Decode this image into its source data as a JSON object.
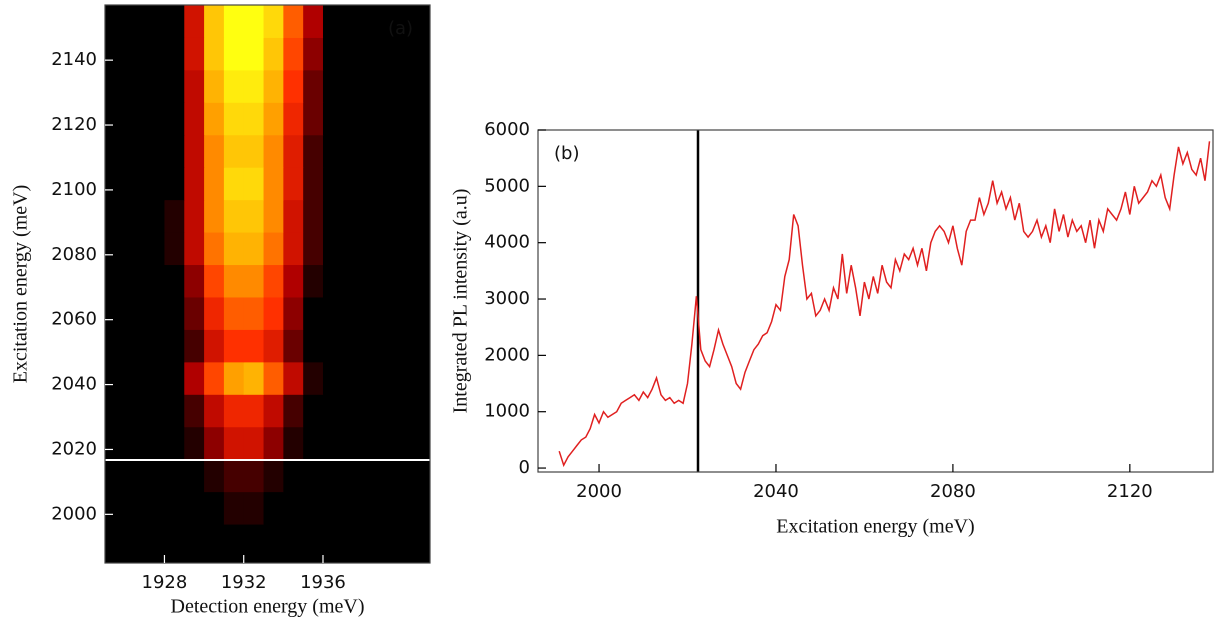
{
  "chart_data": [
    {
      "type": "heatmap",
      "label": "(a)",
      "xlabel": "Detection energy (meV)",
      "ylabel": "Excitation energy (meV)",
      "xlim": [
        1925,
        1941.4
      ],
      "ylim": [
        1985,
        2157
      ],
      "xticks": [
        1928,
        1932,
        1936
      ],
      "yticks": [
        2000,
        2020,
        2040,
        2060,
        2080,
        2100,
        2120,
        2140
      ],
      "colormap": [
        "#000000",
        "#b00000",
        "#ff3000",
        "#ffa000",
        "#ffff10"
      ],
      "x_bins": [
        1925,
        1926,
        1927,
        1928,
        1929,
        1930,
        1931,
        1932,
        1933,
        1934,
        1935,
        1936,
        1937,
        1938,
        1939,
        1940,
        1941
      ],
      "y_bins": [
        1987,
        1997,
        2007,
        2017,
        2027,
        2037,
        2047,
        2057,
        2067,
        2077,
        2087,
        2097,
        2107,
        2117,
        2127,
        2137,
        2147,
        2157
      ],
      "values": [
        [
          0,
          0,
          0,
          0,
          0,
          0,
          0,
          0,
          0,
          0,
          0,
          0,
          0,
          0,
          0,
          0
        ],
        [
          0,
          0,
          0,
          0,
          0,
          0,
          0.05,
          0.05,
          0,
          0,
          0,
          0,
          0,
          0,
          0,
          0
        ],
        [
          0,
          0,
          0,
          0,
          0,
          0.05,
          0.1,
          0.1,
          0.05,
          0,
          0,
          0,
          0,
          0,
          0,
          0
        ],
        [
          0,
          0,
          0,
          0,
          0.05,
          0.2,
          0.35,
          0.35,
          0.2,
          0.05,
          0,
          0,
          0,
          0,
          0,
          0
        ],
        [
          0,
          0,
          0,
          0,
          0.1,
          0.3,
          0.45,
          0.45,
          0.3,
          0.1,
          0,
          0,
          0,
          0,
          0,
          0
        ],
        [
          0,
          0,
          0,
          0,
          0.25,
          0.55,
          0.75,
          0.8,
          0.6,
          0.3,
          0.05,
          0,
          0,
          0,
          0,
          0
        ],
        [
          0,
          0,
          0,
          0,
          0.1,
          0.35,
          0.5,
          0.5,
          0.4,
          0.15,
          0,
          0,
          0,
          0,
          0,
          0
        ],
        [
          0,
          0,
          0,
          0,
          0.15,
          0.45,
          0.6,
          0.6,
          0.5,
          0.2,
          0,
          0,
          0,
          0,
          0,
          0
        ],
        [
          0,
          0,
          0,
          0,
          0.2,
          0.55,
          0.7,
          0.7,
          0.55,
          0.25,
          0.05,
          0,
          0,
          0,
          0,
          0
        ],
        [
          0,
          0,
          0,
          0.05,
          0.3,
          0.65,
          0.8,
          0.8,
          0.65,
          0.35,
          0.1,
          0,
          0,
          0,
          0,
          0
        ],
        [
          0,
          0,
          0,
          0.05,
          0.3,
          0.7,
          0.85,
          0.85,
          0.7,
          0.35,
          0.1,
          0,
          0,
          0,
          0,
          0
        ],
        [
          0,
          0,
          0,
          0,
          0.3,
          0.7,
          0.9,
          0.9,
          0.7,
          0.4,
          0.1,
          0,
          0,
          0,
          0,
          0
        ],
        [
          0,
          0,
          0,
          0,
          0.3,
          0.7,
          0.85,
          0.85,
          0.7,
          0.4,
          0.1,
          0,
          0,
          0,
          0,
          0
        ],
        [
          0,
          0,
          0,
          0,
          0.3,
          0.75,
          0.9,
          0.9,
          0.75,
          0.45,
          0.15,
          0,
          0,
          0,
          0,
          0
        ],
        [
          0,
          0,
          0,
          0,
          0.3,
          0.8,
          0.95,
          0.95,
          0.8,
          0.5,
          0.15,
          0,
          0,
          0,
          0,
          0
        ],
        [
          0,
          0,
          0,
          0,
          0.35,
          0.85,
          1,
          1,
          0.85,
          0.55,
          0.2,
          0,
          0,
          0,
          0,
          0
        ],
        [
          0,
          0,
          0,
          0,
          0.35,
          0.85,
          1,
          1,
          0.9,
          0.6,
          0.25,
          0,
          0,
          0,
          0,
          0
        ]
      ]
    },
    {
      "type": "line",
      "label": "(b)",
      "xlabel": "Excitation energy (meV)",
      "ylabel": "Integrated PL  intensity (a.u)",
      "xlim": [
        1986.2,
        2138.8
      ],
      "ylim": [
        -70,
        6000
      ],
      "xticks": [
        2000,
        2040,
        2080,
        2120
      ],
      "yticks": [
        0,
        1000,
        2000,
        3000,
        4000,
        5000,
        6000
      ],
      "x": [
        1991,
        1992,
        1993,
        1994,
        1995,
        1996,
        1997,
        1998,
        1999,
        2000,
        2001,
        2002,
        2003,
        2004,
        2005,
        2006,
        2007,
        2008,
        2009,
        2010,
        2011,
        2012,
        2013,
        2014,
        2015,
        2016,
        2017,
        2018,
        2019,
        2020,
        2021,
        2022,
        2023,
        2024,
        2025,
        2026,
        2027,
        2028,
        2029,
        2030,
        2031,
        2032,
        2033,
        2034,
        2035,
        2036,
        2037,
        2038,
        2039,
        2040,
        2041,
        2042,
        2043,
        2044,
        2045,
        2046,
        2047,
        2048,
        2049,
        2050,
        2051,
        2052,
        2053,
        2054,
        2055,
        2056,
        2057,
        2058,
        2059,
        2060,
        2061,
        2062,
        2063,
        2064,
        2065,
        2066,
        2067,
        2068,
        2069,
        2070,
        2071,
        2072,
        2073,
        2074,
        2075,
        2076,
        2077,
        2078,
        2079,
        2080,
        2081,
        2082,
        2083,
        2084,
        2085,
        2086,
        2087,
        2088,
        2089,
        2090,
        2091,
        2092,
        2093,
        2094,
        2095,
        2096,
        2097,
        2098,
        2099,
        2100,
        2101,
        2102,
        2103,
        2104,
        2105,
        2106,
        2107,
        2108,
        2109,
        2110,
        2111,
        2112,
        2113,
        2114,
        2115,
        2116,
        2117,
        2118,
        2119,
        2120,
        2121,
        2122,
        2123,
        2124,
        2125,
        2126,
        2127,
        2128,
        2129,
        2130,
        2131,
        2132,
        2133,
        2134,
        2135,
        2136,
        2137,
        2138
      ],
      "series": [
        {
          "color": "#e02020",
          "values": [
            300,
            50,
            200,
            300,
            400,
            500,
            550,
            700,
            950,
            800,
            1000,
            900,
            950,
            1000,
            1150,
            1200,
            1250,
            1300,
            1200,
            1350,
            1250,
            1400,
            1600,
            1300,
            1200,
            1250,
            1150,
            1200,
            1150,
            1500,
            2200,
            3050,
            2100,
            1900,
            1800,
            2100,
            2450,
            2200,
            2000,
            1800,
            1500,
            1400,
            1700,
            1900,
            2100,
            2200,
            2350,
            2400,
            2600,
            2900,
            2800,
            3400,
            3700,
            4500,
            4300,
            3600,
            3000,
            3100,
            2700,
            2800,
            3000,
            2800,
            3200,
            3000,
            3800,
            3100,
            3600,
            3200,
            2700,
            3300,
            3000,
            3400,
            3100,
            3600,
            3300,
            3200,
            3700,
            3500,
            3800,
            3700,
            3900,
            3600,
            3900,
            3500,
            4000,
            4200,
            4300,
            4200,
            4000,
            4300,
            3900,
            3600,
            4200,
            4400,
            4400,
            4800,
            4500,
            4700,
            5100,
            4700,
            4900,
            4600,
            4800,
            4400,
            4700,
            4200,
            4100,
            4200,
            4400,
            4100,
            4300,
            4000,
            4600,
            4200,
            4500,
            4100,
            4400,
            4200,
            4300,
            4000,
            4400,
            3900,
            4400,
            4200,
            4600,
            4500,
            4400,
            4600,
            4900,
            4500,
            5000,
            4700,
            4800,
            4900,
            5100,
            5000,
            5200,
            4800,
            4600,
            5200,
            5700,
            5400,
            5600,
            5300,
            5200,
            5500,
            5100,
            5800
          ]
        }
      ]
    }
  ]
}
